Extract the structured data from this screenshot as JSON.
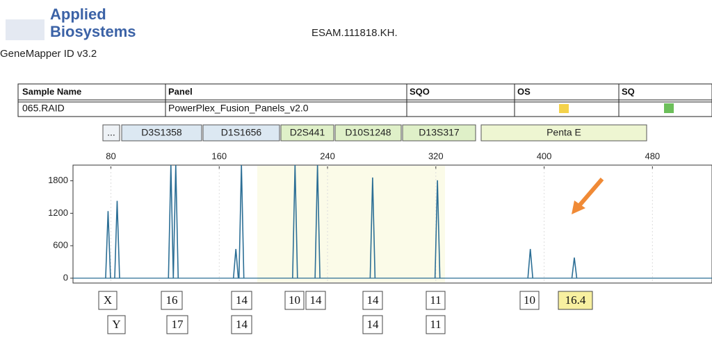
{
  "header": {
    "brand": [
      "Applied",
      "Biosystems"
    ],
    "title": "ESAM.111818.KH.",
    "software": "GeneMapper ID v3.2"
  },
  "table": {
    "columns": [
      "Sample Name",
      "Panel",
      "SQO",
      "OS",
      "SQ"
    ],
    "rows": [
      [
        "065.RAID",
        "PowerPlex_Fusion_Panels_v2.0"
      ]
    ]
  },
  "loci": [
    "...",
    "D3S1358",
    "D1S1656",
    "D2S441",
    "D10S1248",
    "D13S317",
    "Penta E"
  ],
  "chart_data": {
    "type": "stem",
    "x": [
      77.9,
      84.6,
      124.3,
      127.9,
      172.3,
      176.4,
      216.0,
      232.6,
      273.3,
      321.2,
      389.8,
      422.3
    ],
    "values": [
      1240,
      1430,
      2100,
      2100,
      540,
      2100,
      2100,
      2100,
      1860,
      1810,
      540,
      380
    ],
    "xlim": [
      52,
      524
    ],
    "ylim": [
      0,
      2090
    ],
    "xticks": [
      80,
      160,
      240,
      320,
      400,
      480
    ],
    "yticks": [
      0,
      600,
      1200,
      1800
    ],
    "color": "#2b6e95"
  },
  "alleles": {
    "row1": [
      "X",
      "16",
      "14",
      "10",
      "14",
      "14",
      "11",
      "10",
      "16.4"
    ],
    "row2": [
      "Y",
      "17",
      "14",
      "14",
      "11"
    ]
  }
}
